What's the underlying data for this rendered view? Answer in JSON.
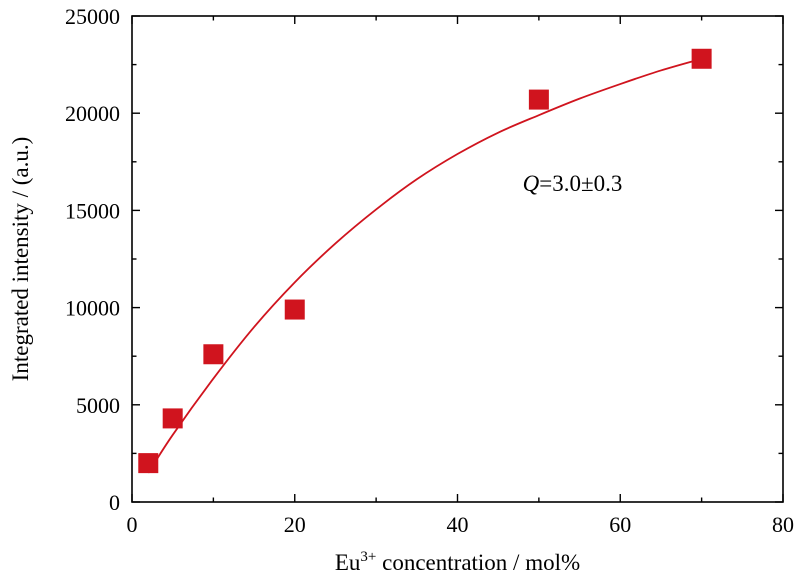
{
  "chart_data": {
    "type": "scatter",
    "xlabel": {
      "prefix": "Eu",
      "superscript": "3+",
      "suffix": " concentration / mol%"
    },
    "ylabel": "Integrated intensity / (a.u.)",
    "xlim": [
      0,
      80
    ],
    "ylim": [
      0,
      25000
    ],
    "x_ticks": [
      0,
      20,
      40,
      60,
      80
    ],
    "y_ticks": [
      0,
      5000,
      10000,
      15000,
      20000,
      25000
    ],
    "grid": false,
    "annotation": {
      "italic_part": "Q",
      "rest": "=3.0±0.3",
      "x": 48,
      "y": 16000
    },
    "series": [
      {
        "marker": "square",
        "color": "#d0141e",
        "x": [
          2,
          5,
          10,
          20,
          50,
          70
        ],
        "y": [
          2000,
          4300,
          7600,
          9900,
          20700,
          22800
        ]
      }
    ],
    "fit_line": {
      "color": "#d0141e",
      "x": [
        2,
        5,
        10,
        15,
        20,
        25,
        30,
        35,
        40,
        45,
        50,
        55,
        60,
        65,
        70
      ],
      "y": [
        1500,
        3450,
        6350,
        9000,
        11300,
        13300,
        15050,
        16600,
        17900,
        19000,
        19900,
        20750,
        21500,
        22200,
        22800
      ]
    }
  }
}
